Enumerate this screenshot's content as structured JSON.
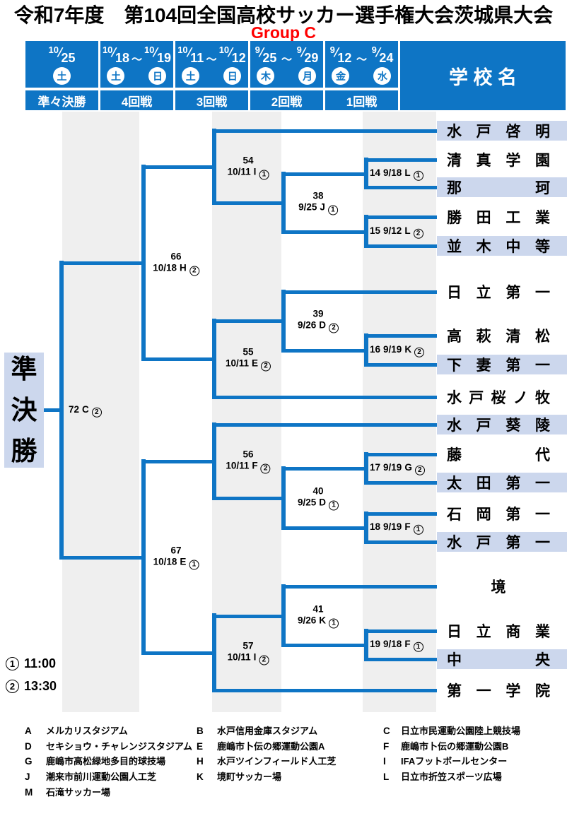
{
  "title": "令和7年度　第104回全国高校サッカー選手権大会茨城県大会",
  "group": "Group C",
  "colors": {
    "accent_blue": "#0e75c5",
    "highlight_lavender": "#ccd7ed",
    "column_stripe_gray": "#efefef",
    "group_red": "#ff0000"
  },
  "header": {
    "school_label": "学 校 名",
    "range_mark": "〜",
    "columns": [
      {
        "round": "準々決勝",
        "dates": [
          {
            "month": "10",
            "day": "25",
            "weekday": "土"
          }
        ]
      },
      {
        "round": "4回戦",
        "dates": [
          {
            "month": "10",
            "day": "18",
            "weekday": "土"
          },
          {
            "month": "10",
            "day": "19",
            "weekday": "日"
          }
        ]
      },
      {
        "round": "3回戦",
        "dates": [
          {
            "month": "10",
            "day": "11",
            "weekday": "土"
          },
          {
            "month": "10",
            "day": "12",
            "weekday": "日"
          }
        ]
      },
      {
        "round": "2回戦",
        "dates": [
          {
            "month": "9",
            "day": "25",
            "weekday": "木"
          },
          {
            "month": "9",
            "day": "29",
            "weekday": "月"
          }
        ]
      },
      {
        "round": "1回戦",
        "dates": [
          {
            "month": "9",
            "day": "12",
            "weekday": "金"
          },
          {
            "month": "9",
            "day": "24",
            "weekday": "水"
          }
        ]
      }
    ]
  },
  "semifinal_label": "準決勝",
  "teams": [
    {
      "name": "水戸啓明",
      "highlight": true
    },
    {
      "name": "清真学園",
      "highlight": false
    },
    {
      "name": "那珂",
      "highlight": true
    },
    {
      "name": "勝田工業",
      "highlight": false
    },
    {
      "name": "並木中等",
      "highlight": true
    },
    {
      "name": "日立第一",
      "highlight": false
    },
    {
      "name": "高萩清松",
      "highlight": false
    },
    {
      "name": "下妻第一",
      "highlight": true
    },
    {
      "name": "水戸桜ノ牧",
      "highlight": false
    },
    {
      "name": "水戸葵陵",
      "highlight": true
    },
    {
      "name": "藤代",
      "highlight": false
    },
    {
      "name": "太田第一",
      "highlight": true
    },
    {
      "name": "石岡第一",
      "highlight": false
    },
    {
      "name": "水戸第一",
      "highlight": true
    },
    {
      "name": "境",
      "highlight": false
    },
    {
      "name": "日立商業",
      "highlight": false
    },
    {
      "name": "中央",
      "highlight": true
    },
    {
      "name": "第一学院",
      "highlight": false
    }
  ],
  "matches": {
    "round1": [
      {
        "no": "14",
        "date": "9/18",
        "venue": "L",
        "slot": "1"
      },
      {
        "no": "15",
        "date": "9/12",
        "venue": "L",
        "slot": "2"
      },
      {
        "no": "16",
        "date": "9/19",
        "venue": "K",
        "slot": "2"
      },
      {
        "no": "17",
        "date": "9/19",
        "venue": "G",
        "slot": "2"
      },
      {
        "no": "18",
        "date": "9/19",
        "venue": "F",
        "slot": "1"
      },
      {
        "no": "19",
        "date": "9/18",
        "venue": "F",
        "slot": "1"
      }
    ],
    "round2": [
      {
        "no": "38",
        "date": "9/25",
        "venue": "J",
        "slot": "1"
      },
      {
        "no": "39",
        "date": "9/26",
        "venue": "D",
        "slot": "2"
      },
      {
        "no": "40",
        "date": "9/25",
        "venue": "D",
        "slot": "1"
      },
      {
        "no": "41",
        "date": "9/26",
        "venue": "K",
        "slot": "1"
      }
    ],
    "round3": [
      {
        "no": "54",
        "date": "10/11",
        "venue": "I",
        "slot": "1"
      },
      {
        "no": "55",
        "date": "10/11",
        "venue": "E",
        "slot": "2"
      },
      {
        "no": "56",
        "date": "10/11",
        "venue": "F",
        "slot": "2"
      },
      {
        "no": "57",
        "date": "10/11",
        "venue": "I",
        "slot": "2"
      }
    ],
    "round4": [
      {
        "no": "66",
        "date": "10/18",
        "venue": "H",
        "slot": "2"
      },
      {
        "no": "67",
        "date": "10/18",
        "venue": "E",
        "slot": "1"
      }
    ],
    "quarterfinal": {
      "no": "72",
      "date": "",
      "venue": "C",
      "slot": "2"
    }
  },
  "times": [
    {
      "mark": "1",
      "time": "11:00"
    },
    {
      "mark": "2",
      "time": "13:30"
    }
  ],
  "venues": [
    {
      "code": "A",
      "name": "メルカリスタジアム"
    },
    {
      "code": "B",
      "name": "水戸信用金庫スタジアム"
    },
    {
      "code": "C",
      "name": "日立市民運動公園陸上競技場"
    },
    {
      "code": "D",
      "name": "セキショウ・チャレンジスタジアム"
    },
    {
      "code": "E",
      "name": "鹿嶋市卜伝の郷運動公園A"
    },
    {
      "code": "F",
      "name": "鹿嶋市卜伝の郷運動公園B"
    },
    {
      "code": "G",
      "name": "鹿嶋市高松緑地多目的球技場"
    },
    {
      "code": "H",
      "name": "水戸ツインフィールド人工芝"
    },
    {
      "code": "I",
      "name": "IFAフットボールセンター"
    },
    {
      "code": "J",
      "name": "潮来市前川運動公園人工芝"
    },
    {
      "code": "K",
      "name": "境町サッカー場"
    },
    {
      "code": "L",
      "name": "日立市折笠スポーツ広場"
    },
    {
      "code": "M",
      "name": "石滝サッカー場"
    }
  ]
}
